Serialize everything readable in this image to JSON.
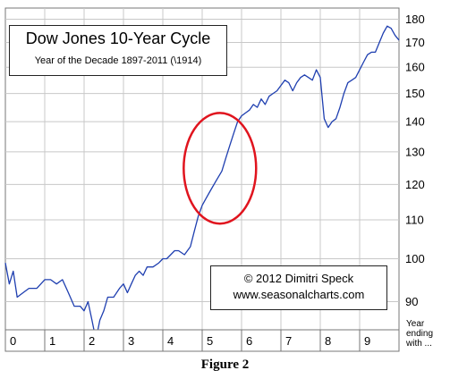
{
  "caption": "Figure 2",
  "chart_data": {
    "type": "line",
    "title": "Dow Jones 10-Year Cycle",
    "subtitle": "Year of the Decade  1897-2011 (\\1914)",
    "credit_line1": "© 2012  Dimitri Speck",
    "credit_line2": "www.seasonalcharts.com",
    "x_axis_note": [
      "Year",
      "ending",
      "with ..."
    ],
    "x_categories": [
      "0",
      "1",
      "2",
      "3",
      "4",
      "5",
      "6",
      "7",
      "8",
      "9"
    ],
    "xlim": [
      0,
      10
    ],
    "y_scale": "log",
    "ylim": [
      84,
      185
    ],
    "y_ticks": [
      90,
      100,
      110,
      120,
      130,
      140,
      150,
      160,
      170,
      180
    ],
    "grid": true,
    "line_color": "#1f3fb0",
    "highlight": {
      "shape": "ellipse",
      "color": "#e0141e",
      "x_center": 5.45,
      "y_center": 124,
      "x_radius": 0.92,
      "y_low": 109,
      "y_high": 143
    },
    "x": [
      0.0,
      0.1,
      0.2,
      0.3,
      0.45,
      0.6,
      0.8,
      1.0,
      1.15,
      1.3,
      1.45,
      1.6,
      1.75,
      1.9,
      2.0,
      2.1,
      2.2,
      2.3,
      2.4,
      2.5,
      2.6,
      2.75,
      2.9,
      3.0,
      3.1,
      3.2,
      3.3,
      3.4,
      3.5,
      3.6,
      3.75,
      3.9,
      4.0,
      4.1,
      4.2,
      4.3,
      4.4,
      4.55,
      4.7,
      4.8,
      4.9,
      5.0,
      5.1,
      5.2,
      5.35,
      5.5,
      5.6,
      5.7,
      5.8,
      5.9,
      6.0,
      6.1,
      6.2,
      6.3,
      6.4,
      6.5,
      6.6,
      6.7,
      6.8,
      6.9,
      7.0,
      7.1,
      7.2,
      7.3,
      7.4,
      7.5,
      7.6,
      7.7,
      7.8,
      7.9,
      8.0,
      8.1,
      8.2,
      8.3,
      8.4,
      8.5,
      8.6,
      8.7,
      8.8,
      8.9,
      9.0,
      9.1,
      9.2,
      9.3,
      9.4,
      9.5,
      9.6,
      9.7,
      9.8,
      9.9,
      10.0
    ],
    "values": [
      99,
      94,
      97,
      91,
      92,
      93,
      93,
      95,
      95,
      94,
      95,
      92,
      89,
      89,
      88,
      90,
      86,
      82,
      86,
      88,
      91,
      91,
      93,
      94,
      92,
      94,
      96,
      97,
      96,
      98,
      98,
      99,
      100,
      100,
      101,
      102,
      102,
      101,
      103,
      107,
      111,
      114,
      116,
      118,
      121,
      124,
      128,
      132,
      136,
      140,
      142,
      143,
      144,
      146,
      145,
      148,
      146,
      149,
      150,
      151,
      153,
      155,
      154,
      151,
      154,
      156,
      157,
      156,
      155,
      159,
      156,
      141,
      138,
      140,
      141,
      145,
      150,
      154,
      155,
      156,
      159,
      162,
      165,
      166,
      166,
      170,
      174,
      177,
      176,
      173,
      171
    ]
  }
}
